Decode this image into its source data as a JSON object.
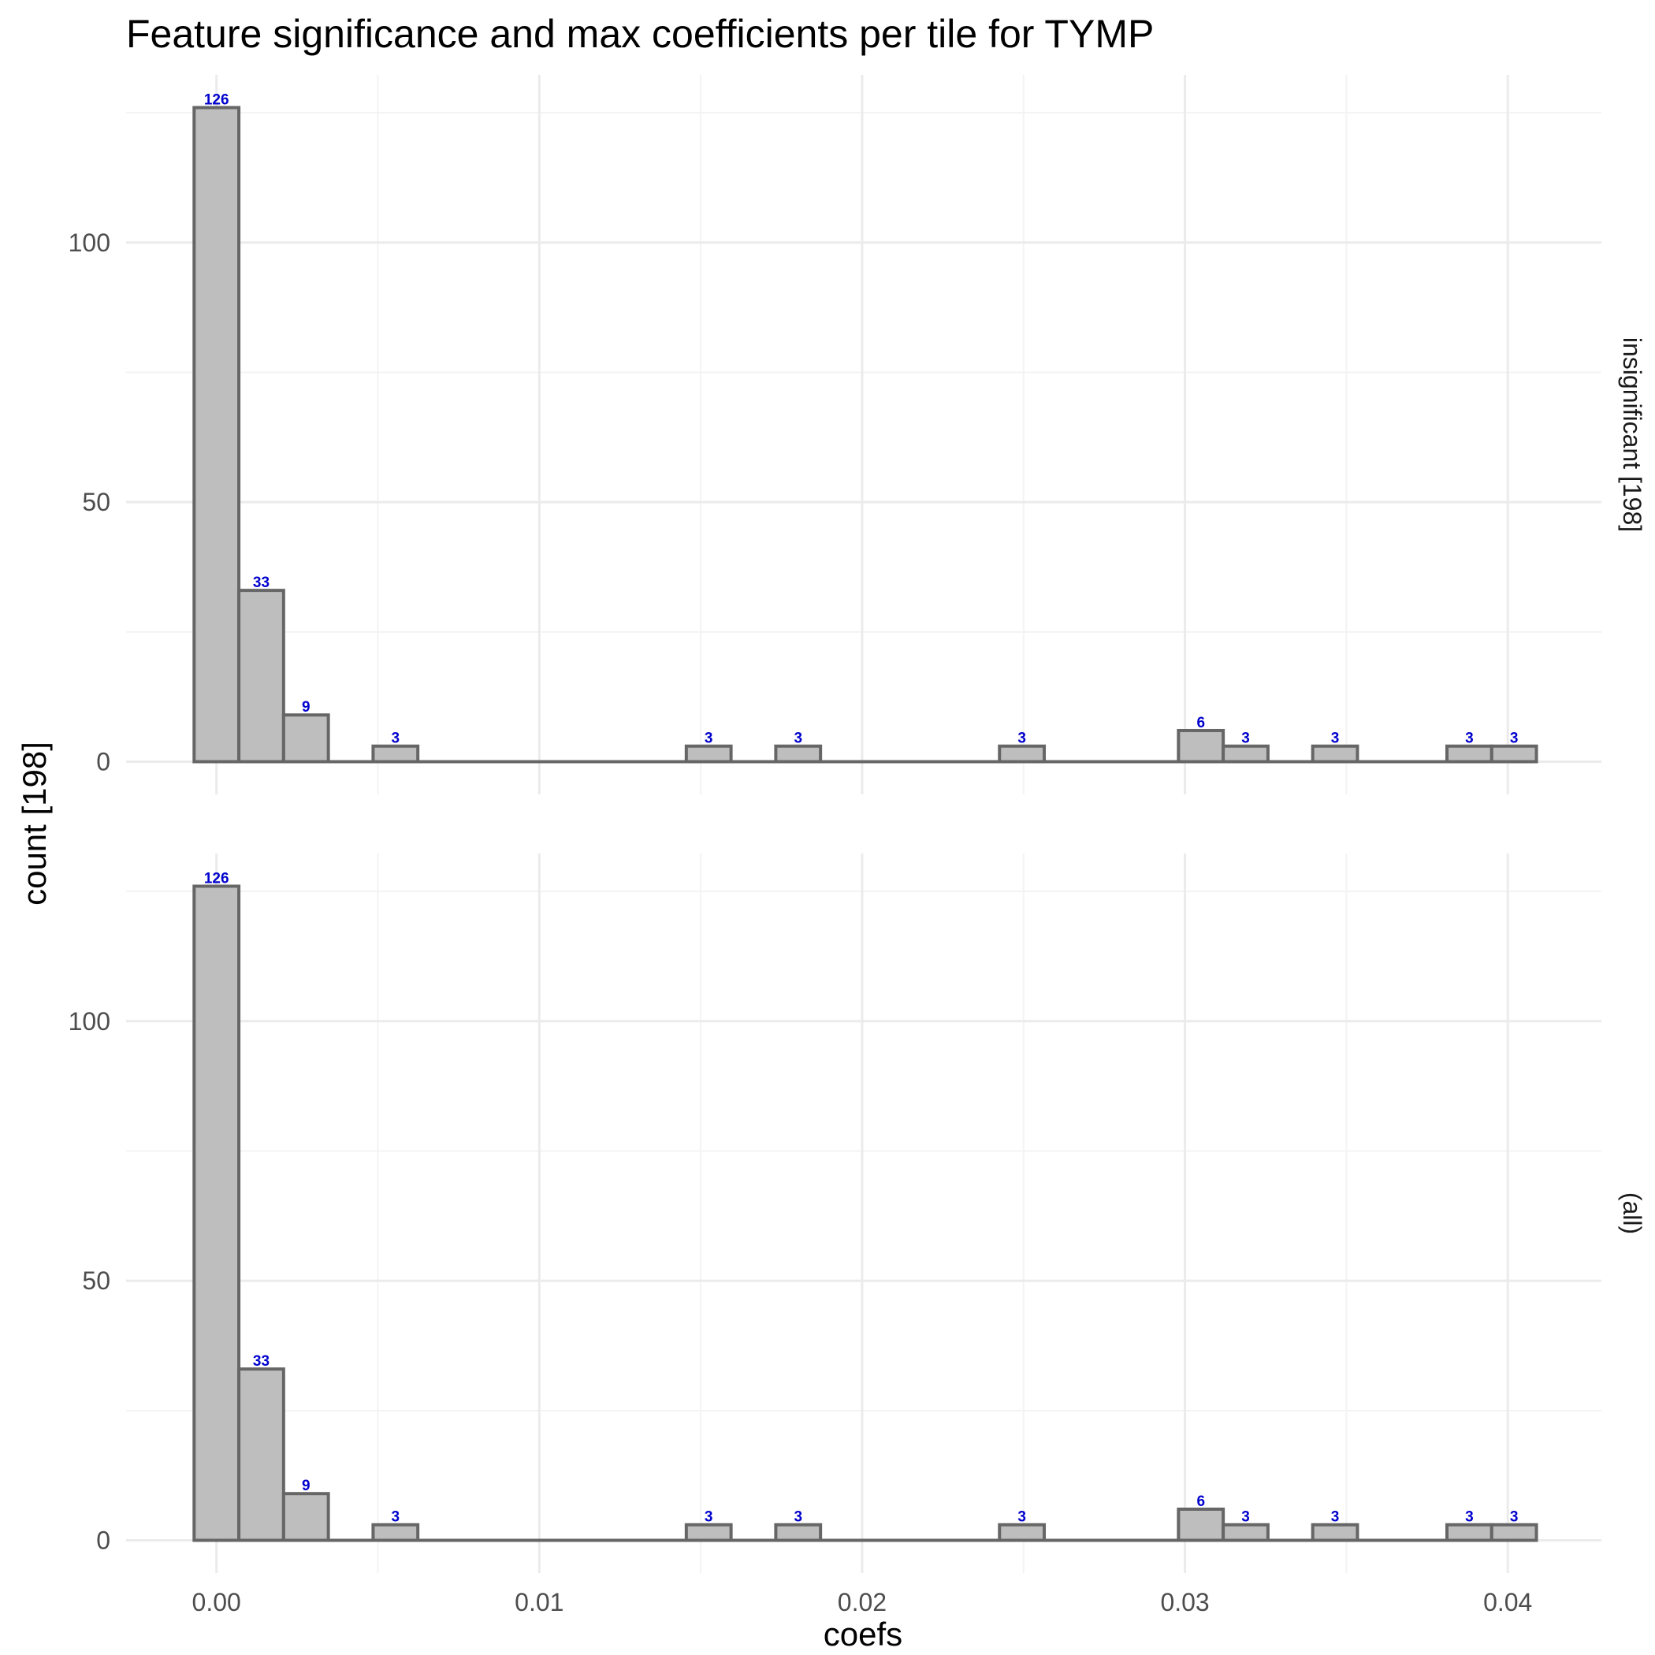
{
  "chart_data": {
    "type": "bar",
    "title": "Feature significance and max coefficients per tile for TYMP",
    "xlabel": "coefs",
    "ylabel": "count [198]",
    "xlim": [
      -0.0028,
      0.0429
    ],
    "ylim": [
      -6.3,
      132.3
    ],
    "x_ticks": [
      0.0,
      0.01,
      0.02,
      0.03,
      0.04
    ],
    "x_tick_labels": [
      "0.00",
      "0.01",
      "0.02",
      "0.03",
      "0.04"
    ],
    "y_ticks": [
      0,
      50,
      100
    ],
    "y_tick_labels": [
      "0",
      "50",
      "100"
    ],
    "grid": true,
    "bin_width": 0.001386,
    "bin_centers": [
      0.0,
      0.001386,
      0.002772,
      0.005544,
      0.015246,
      0.018018,
      0.024948,
      0.030492,
      0.031878,
      0.03465,
      0.038808,
      0.040194
    ],
    "panels": [
      {
        "strip_label": "insignificant [198]",
        "values": [
          126,
          33,
          9,
          3,
          3,
          3,
          3,
          6,
          3,
          3,
          3,
          3
        ],
        "labels": [
          "126",
          "33",
          "9",
          "3",
          "3",
          "3",
          "3",
          "6",
          "3",
          "3",
          "3",
          "3"
        ]
      },
      {
        "strip_label": "(all)",
        "values": [
          126,
          33,
          9,
          3,
          3,
          3,
          3,
          6,
          3,
          3,
          3,
          3
        ],
        "labels": [
          "126",
          "33",
          "9",
          "3",
          "3",
          "3",
          "3",
          "6",
          "3",
          "3",
          "3",
          "3"
        ]
      }
    ]
  },
  "colors": {
    "bar_fill": "#bebebe",
    "bar_stroke": "#666666",
    "bar_label": "#0000cd",
    "grid": "#ebebeb"
  }
}
